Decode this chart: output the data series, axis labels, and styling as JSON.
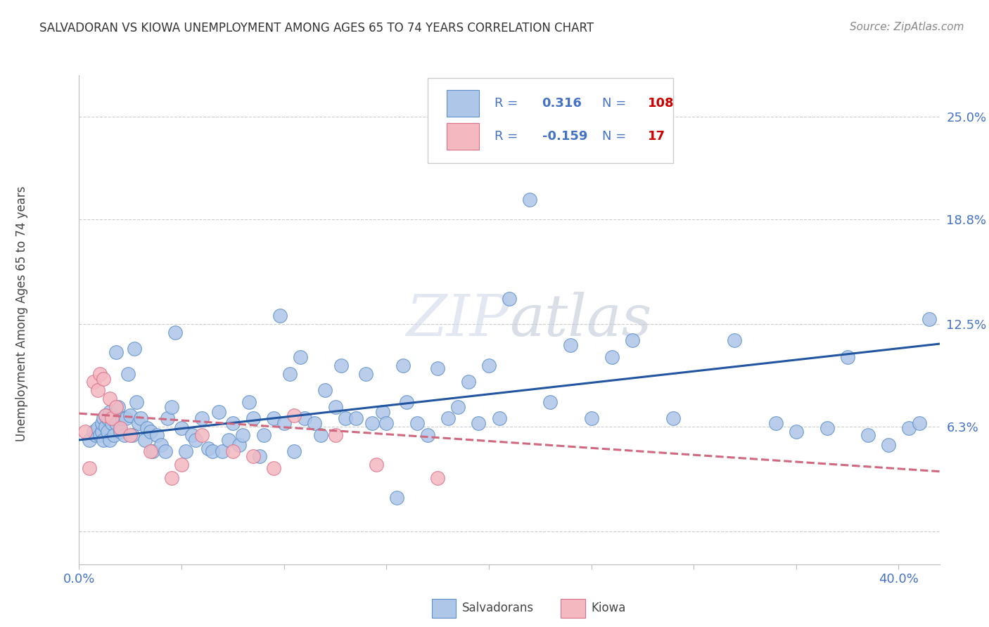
{
  "title": "SALVADORAN VS KIOWA UNEMPLOYMENT AMONG AGES 65 TO 74 YEARS CORRELATION CHART",
  "source": "Source: ZipAtlas.com",
  "ylabel": "Unemployment Among Ages 65 to 74 years",
  "xlim": [
    0.0,
    0.42
  ],
  "ylim": [
    -0.02,
    0.275
  ],
  "xticks": [
    0.0,
    0.05,
    0.1,
    0.15,
    0.2,
    0.25,
    0.3,
    0.35,
    0.4
  ],
  "xticklabels": [
    "0.0%",
    "",
    "",
    "",
    "",
    "",
    "",
    "",
    "40.0%"
  ],
  "ytick_positions": [
    0.0,
    0.063,
    0.125,
    0.188,
    0.25
  ],
  "ytick_labels": [
    "",
    "6.3%",
    "12.5%",
    "18.8%",
    "25.0%"
  ],
  "salvadoran_color": "#aec6e8",
  "salvadoran_edge": "#5b8fc9",
  "kiowa_color": "#f4b8c1",
  "kiowa_edge": "#d97088",
  "trendline_sal_color": "#2155a0",
  "trendline_kio_color": "#d06880",
  "watermark": "ZIPatlas",
  "sal_trend_x0": 0.0,
  "sal_trend_x1": 0.42,
  "sal_trend_y0": 0.055,
  "sal_trend_y1": 0.113,
  "kio_trend_x0": 0.0,
  "kio_trend_x1": 0.42,
  "kio_trend_y0": 0.071,
  "kio_trend_y1": 0.036,
  "salvadoran_x": [
    0.005,
    0.007,
    0.008,
    0.009,
    0.01,
    0.011,
    0.011,
    0.012,
    0.012,
    0.013,
    0.013,
    0.014,
    0.014,
    0.015,
    0.015,
    0.016,
    0.016,
    0.017,
    0.017,
    0.018,
    0.018,
    0.019,
    0.02,
    0.021,
    0.022,
    0.023,
    0.024,
    0.025,
    0.026,
    0.027,
    0.028,
    0.029,
    0.03,
    0.032,
    0.033,
    0.035,
    0.036,
    0.038,
    0.04,
    0.042,
    0.043,
    0.045,
    0.047,
    0.05,
    0.052,
    0.055,
    0.057,
    0.06,
    0.063,
    0.065,
    0.068,
    0.07,
    0.073,
    0.075,
    0.078,
    0.08,
    0.083,
    0.085,
    0.088,
    0.09,
    0.095,
    0.098,
    0.1,
    0.103,
    0.105,
    0.108,
    0.11,
    0.115,
    0.118,
    0.12,
    0.125,
    0.128,
    0.13,
    0.135,
    0.14,
    0.143,
    0.148,
    0.15,
    0.155,
    0.158,
    0.16,
    0.165,
    0.17,
    0.175,
    0.18,
    0.185,
    0.19,
    0.195,
    0.2,
    0.205,
    0.21,
    0.22,
    0.23,
    0.24,
    0.25,
    0.26,
    0.27,
    0.29,
    0.32,
    0.34,
    0.35,
    0.365,
    0.375,
    0.385,
    0.395,
    0.405,
    0.41,
    0.415
  ],
  "salvadoran_y": [
    0.055,
    0.06,
    0.058,
    0.062,
    0.058,
    0.06,
    0.065,
    0.055,
    0.068,
    0.063,
    0.07,
    0.06,
    0.068,
    0.055,
    0.072,
    0.065,
    0.07,
    0.058,
    0.068,
    0.065,
    0.108,
    0.075,
    0.06,
    0.068,
    0.058,
    0.068,
    0.095,
    0.07,
    0.058,
    0.11,
    0.078,
    0.065,
    0.068,
    0.055,
    0.062,
    0.06,
    0.048,
    0.058,
    0.052,
    0.048,
    0.068,
    0.075,
    0.12,
    0.062,
    0.048,
    0.058,
    0.055,
    0.068,
    0.05,
    0.048,
    0.072,
    0.048,
    0.055,
    0.065,
    0.052,
    0.058,
    0.078,
    0.068,
    0.045,
    0.058,
    0.068,
    0.13,
    0.065,
    0.095,
    0.048,
    0.105,
    0.068,
    0.065,
    0.058,
    0.085,
    0.075,
    0.1,
    0.068,
    0.068,
    0.095,
    0.065,
    0.072,
    0.065,
    0.02,
    0.1,
    0.078,
    0.065,
    0.058,
    0.098,
    0.068,
    0.075,
    0.09,
    0.065,
    0.1,
    0.068,
    0.14,
    0.2,
    0.078,
    0.112,
    0.068,
    0.105,
    0.115,
    0.068,
    0.115,
    0.065,
    0.06,
    0.062,
    0.105,
    0.058,
    0.052,
    0.062,
    0.065,
    0.128
  ],
  "kiowa_x": [
    0.003,
    0.005,
    0.007,
    0.009,
    0.01,
    0.012,
    0.013,
    0.015,
    0.016,
    0.018,
    0.02,
    0.025,
    0.035,
    0.045,
    0.05,
    0.06,
    0.075,
    0.085,
    0.095,
    0.105,
    0.125,
    0.145,
    0.175
  ],
  "kiowa_y": [
    0.06,
    0.038,
    0.09,
    0.085,
    0.095,
    0.092,
    0.07,
    0.08,
    0.068,
    0.075,
    0.062,
    0.058,
    0.048,
    0.032,
    0.04,
    0.058,
    0.048,
    0.045,
    0.038,
    0.07,
    0.058,
    0.04,
    0.032
  ],
  "background_color": "#ffffff",
  "grid_color": "#cccccc",
  "legend_text_color": "#4472c4",
  "legend_val_color": "#4472c4",
  "legend_n_color": "#cc0000"
}
